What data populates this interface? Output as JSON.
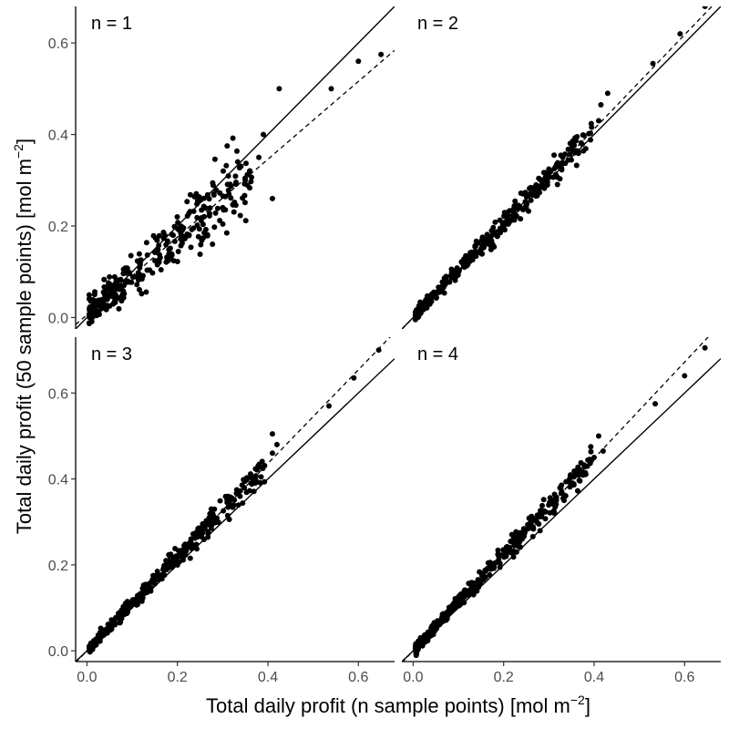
{
  "chart_data": {
    "type": "scatter",
    "facets": 4,
    "layout": "2x2",
    "xlabel": "Total daily profit (n sample points) [mol m",
    "xlabel_sup": "−2",
    "xlabel_end": "]",
    "ylabel": "Total daily profit (50 sample points) [mol m",
    "ylabel_sup": "−2",
    "ylabel_end": "]",
    "xlim": [
      -0.025,
      0.68
    ],
    "ylim_top_row": [
      -0.025,
      0.68
    ],
    "ylim_bottom_row": [
      -0.025,
      0.73
    ],
    "x_ticks": [
      0.0,
      0.2,
      0.4,
      0.6
    ],
    "x_tick_labels": [
      "0.0",
      "0.2",
      "0.4",
      "0.6"
    ],
    "y_ticks": [
      0.0,
      0.2,
      0.4,
      0.6
    ],
    "y_tick_labels": [
      "0.0",
      "0.2",
      "0.4",
      "0.6"
    ],
    "grid": false,
    "reference_line": {
      "style": "solid",
      "slope": 1,
      "intercept": 0
    },
    "panels": [
      {
        "label": "n = 1",
        "fit_line": {
          "style": "dashed",
          "slope": 0.85,
          "intercept": 0.006
        },
        "highlighted_points": [
          {
            "x": 0.425,
            "y": 0.5
          },
          {
            "x": 0.54,
            "y": 0.5
          },
          {
            "x": 0.6,
            "y": 0.56
          },
          {
            "x": 0.65,
            "y": 0.575
          },
          {
            "x": 0.41,
            "y": 0.26
          },
          {
            "x": 0.39,
            "y": 0.4
          },
          {
            "x": 0.38,
            "y": 0.35
          },
          {
            "x": 0.31,
            "y": 0.375
          },
          {
            "x": 0.35,
            "y": 0.3
          }
        ],
        "cloud": {
          "x_max": 0.36,
          "slope": 0.85,
          "intercept": 0.006,
          "spread": 0.035,
          "count": 320
        }
      },
      {
        "label": "n = 2",
        "fit_line": {
          "style": "dashed",
          "slope": 1.03,
          "intercept": 0.0
        },
        "highlighted_points": [
          {
            "x": 0.645,
            "y": 0.68
          },
          {
            "x": 0.59,
            "y": 0.62
          },
          {
            "x": 0.53,
            "y": 0.555
          },
          {
            "x": 0.43,
            "y": 0.49
          },
          {
            "x": 0.415,
            "y": 0.465
          },
          {
            "x": 0.41,
            "y": 0.43
          }
        ],
        "cloud": {
          "x_max": 0.39,
          "slope": 1.03,
          "intercept": 0.0,
          "spread": 0.013,
          "count": 380
        }
      },
      {
        "label": "n = 3",
        "fit_line": {
          "style": "dashed",
          "slope": 1.09,
          "intercept": 0.0
        },
        "highlighted_points": [
          {
            "x": 0.645,
            "y": 0.7
          },
          {
            "x": 0.59,
            "y": 0.635
          },
          {
            "x": 0.535,
            "y": 0.57
          },
          {
            "x": 0.41,
            "y": 0.505
          },
          {
            "x": 0.42,
            "y": 0.48
          },
          {
            "x": 0.41,
            "y": 0.46
          }
        ],
        "cloud": {
          "x_max": 0.39,
          "slope": 1.09,
          "intercept": 0.0,
          "spread": 0.013,
          "count": 380
        }
      },
      {
        "label": "n = 4",
        "fit_line": {
          "style": "dashed",
          "slope": 1.12,
          "intercept": 0.0
        },
        "highlighted_points": [
          {
            "x": 0.645,
            "y": 0.705
          },
          {
            "x": 0.6,
            "y": 0.64
          },
          {
            "x": 0.535,
            "y": 0.575
          },
          {
            "x": 0.41,
            "y": 0.5
          },
          {
            "x": 0.42,
            "y": 0.465
          },
          {
            "x": 0.4,
            "y": 0.45
          }
        ],
        "cloud": {
          "x_max": 0.39,
          "slope": 1.12,
          "intercept": 0.0,
          "spread": 0.013,
          "count": 380
        }
      }
    ]
  }
}
